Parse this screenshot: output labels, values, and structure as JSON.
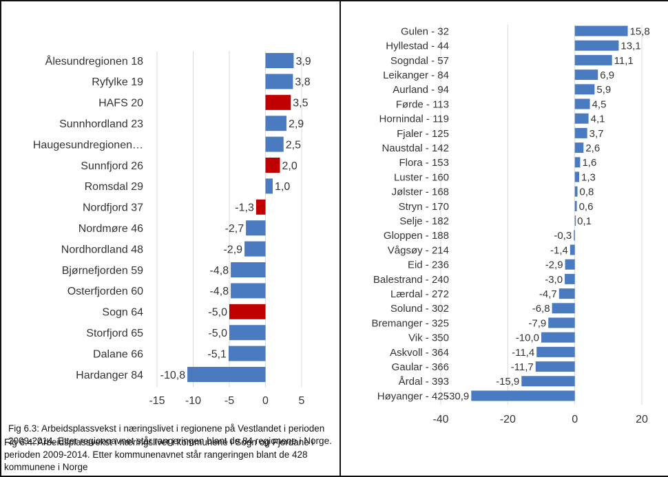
{
  "chart_data": [
    {
      "type": "bar",
      "orientation": "horizontal",
      "categories": [
        "Ålesundregionen 18",
        "Ryfylke 19",
        "HAFS 20",
        "Sunnhordland 23",
        "Haugesundregionen…",
        "Sunnfjord 26",
        "Romsdal 29",
        "Nordfjord 37",
        "Nordmøre 46",
        "Nordhordland 48",
        "Bjørnefjorden 59",
        "Osterfjorden 60",
        "Sogn 64",
        "Storfjord 65",
        "Dalane 66",
        "Hardanger 84"
      ],
      "values": [
        3.9,
        3.8,
        3.5,
        2.9,
        2.5,
        2.0,
        1.0,
        -1.3,
        -2.7,
        -2.9,
        -4.8,
        -4.8,
        -5.0,
        -5.0,
        -5.1,
        -10.8
      ],
      "value_labels": [
        "3,9",
        "3,8",
        "3,5",
        "2,9",
        "2,5",
        "2,0",
        "1,0",
        "-1,3",
        "-2,7",
        "-2,9",
        "-4,8",
        "-4,8",
        "-5,0",
        "-5,0",
        "-5,1",
        "-10,8"
      ],
      "highlighted": [
        "HAFS 20",
        "Sunnfjord 26",
        "Nordfjord 37",
        "Sogn 64"
      ],
      "xlim": [
        -15,
        5
      ],
      "xticks": [
        -15,
        -10,
        -5,
        0,
        5
      ],
      "xtick_labels": [
        "-15",
        "-10",
        "-5",
        "0",
        "5"
      ],
      "grid": true,
      "colors": {
        "bar": "#4a7abf",
        "highlight": "#c00000",
        "grid": "#d9d9d9"
      },
      "caption": "Fig 6.3: Arbeidsplassvekst i næringslivet i regionene på Vestlandet i perioden 2009-2014. Etter regionnavnet står rangeringen blant de 84 regionene i Norge."
    },
    {
      "type": "bar",
      "orientation": "horizontal",
      "categories": [
        "Gulen - 32",
        "Hyllestad - 44",
        "Sogndal - 57",
        "Leikanger - 84",
        "Aurland - 94",
        "Førde - 113",
        "Hornindal - 119",
        "Fjaler - 125",
        "Naustdal - 142",
        "Flora - 153",
        "Luster - 160",
        "Jølster - 168",
        "Stryn - 170",
        "Selje - 182",
        "Gloppen - 188",
        "Vågsøy - 214",
        "Eid - 236",
        "Balestrand - 240",
        "Lærdal - 272",
        "Solund - 302",
        "Bremanger - 325",
        "Vik - 350",
        "Askvoll - 364",
        "Gaular - 366",
        "Årdal - 393",
        "Høyanger - 425"
      ],
      "values": [
        15.8,
        13.1,
        11.1,
        6.9,
        5.9,
        4.5,
        4.1,
        3.7,
        2.6,
        1.6,
        1.3,
        0.8,
        0.6,
        0.1,
        -0.3,
        -1.4,
        -2.9,
        -3.0,
        -4.7,
        -6.8,
        -7.9,
        -10.0,
        -11.4,
        -11.7,
        -15.9,
        -30.9
      ],
      "value_labels": [
        "15,8",
        "13,1",
        "11,1",
        "6,9",
        "5,9",
        "4,5",
        "4,1",
        "3,7",
        "2,6",
        "1,6",
        "1,3",
        "0,8",
        "0,6",
        "0,1",
        "-0,3",
        "-1,4",
        "-2,9",
        "-3,0",
        "-4,7",
        "-6,8",
        "-7,9",
        "-10,0",
        "-11,4",
        "-11,7",
        "-15,9",
        "-30,9"
      ],
      "xlim": [
        -40,
        20
      ],
      "xticks": [
        -40,
        -20,
        0,
        20
      ],
      "xtick_labels": [
        "-40",
        "-20",
        "0",
        "20"
      ],
      "grid": true,
      "colors": {
        "bar": "#4a7abf",
        "grid": "#d9d9d9"
      },
      "caption": "Fig 6.4: Arbeidsplassvekst i næringslivet i kommunene i Sogn og Fjordane i perioden 2009-2014. Etter kommunenavnet står rangeringen blant de 428 kommunene i Norge"
    }
  ]
}
